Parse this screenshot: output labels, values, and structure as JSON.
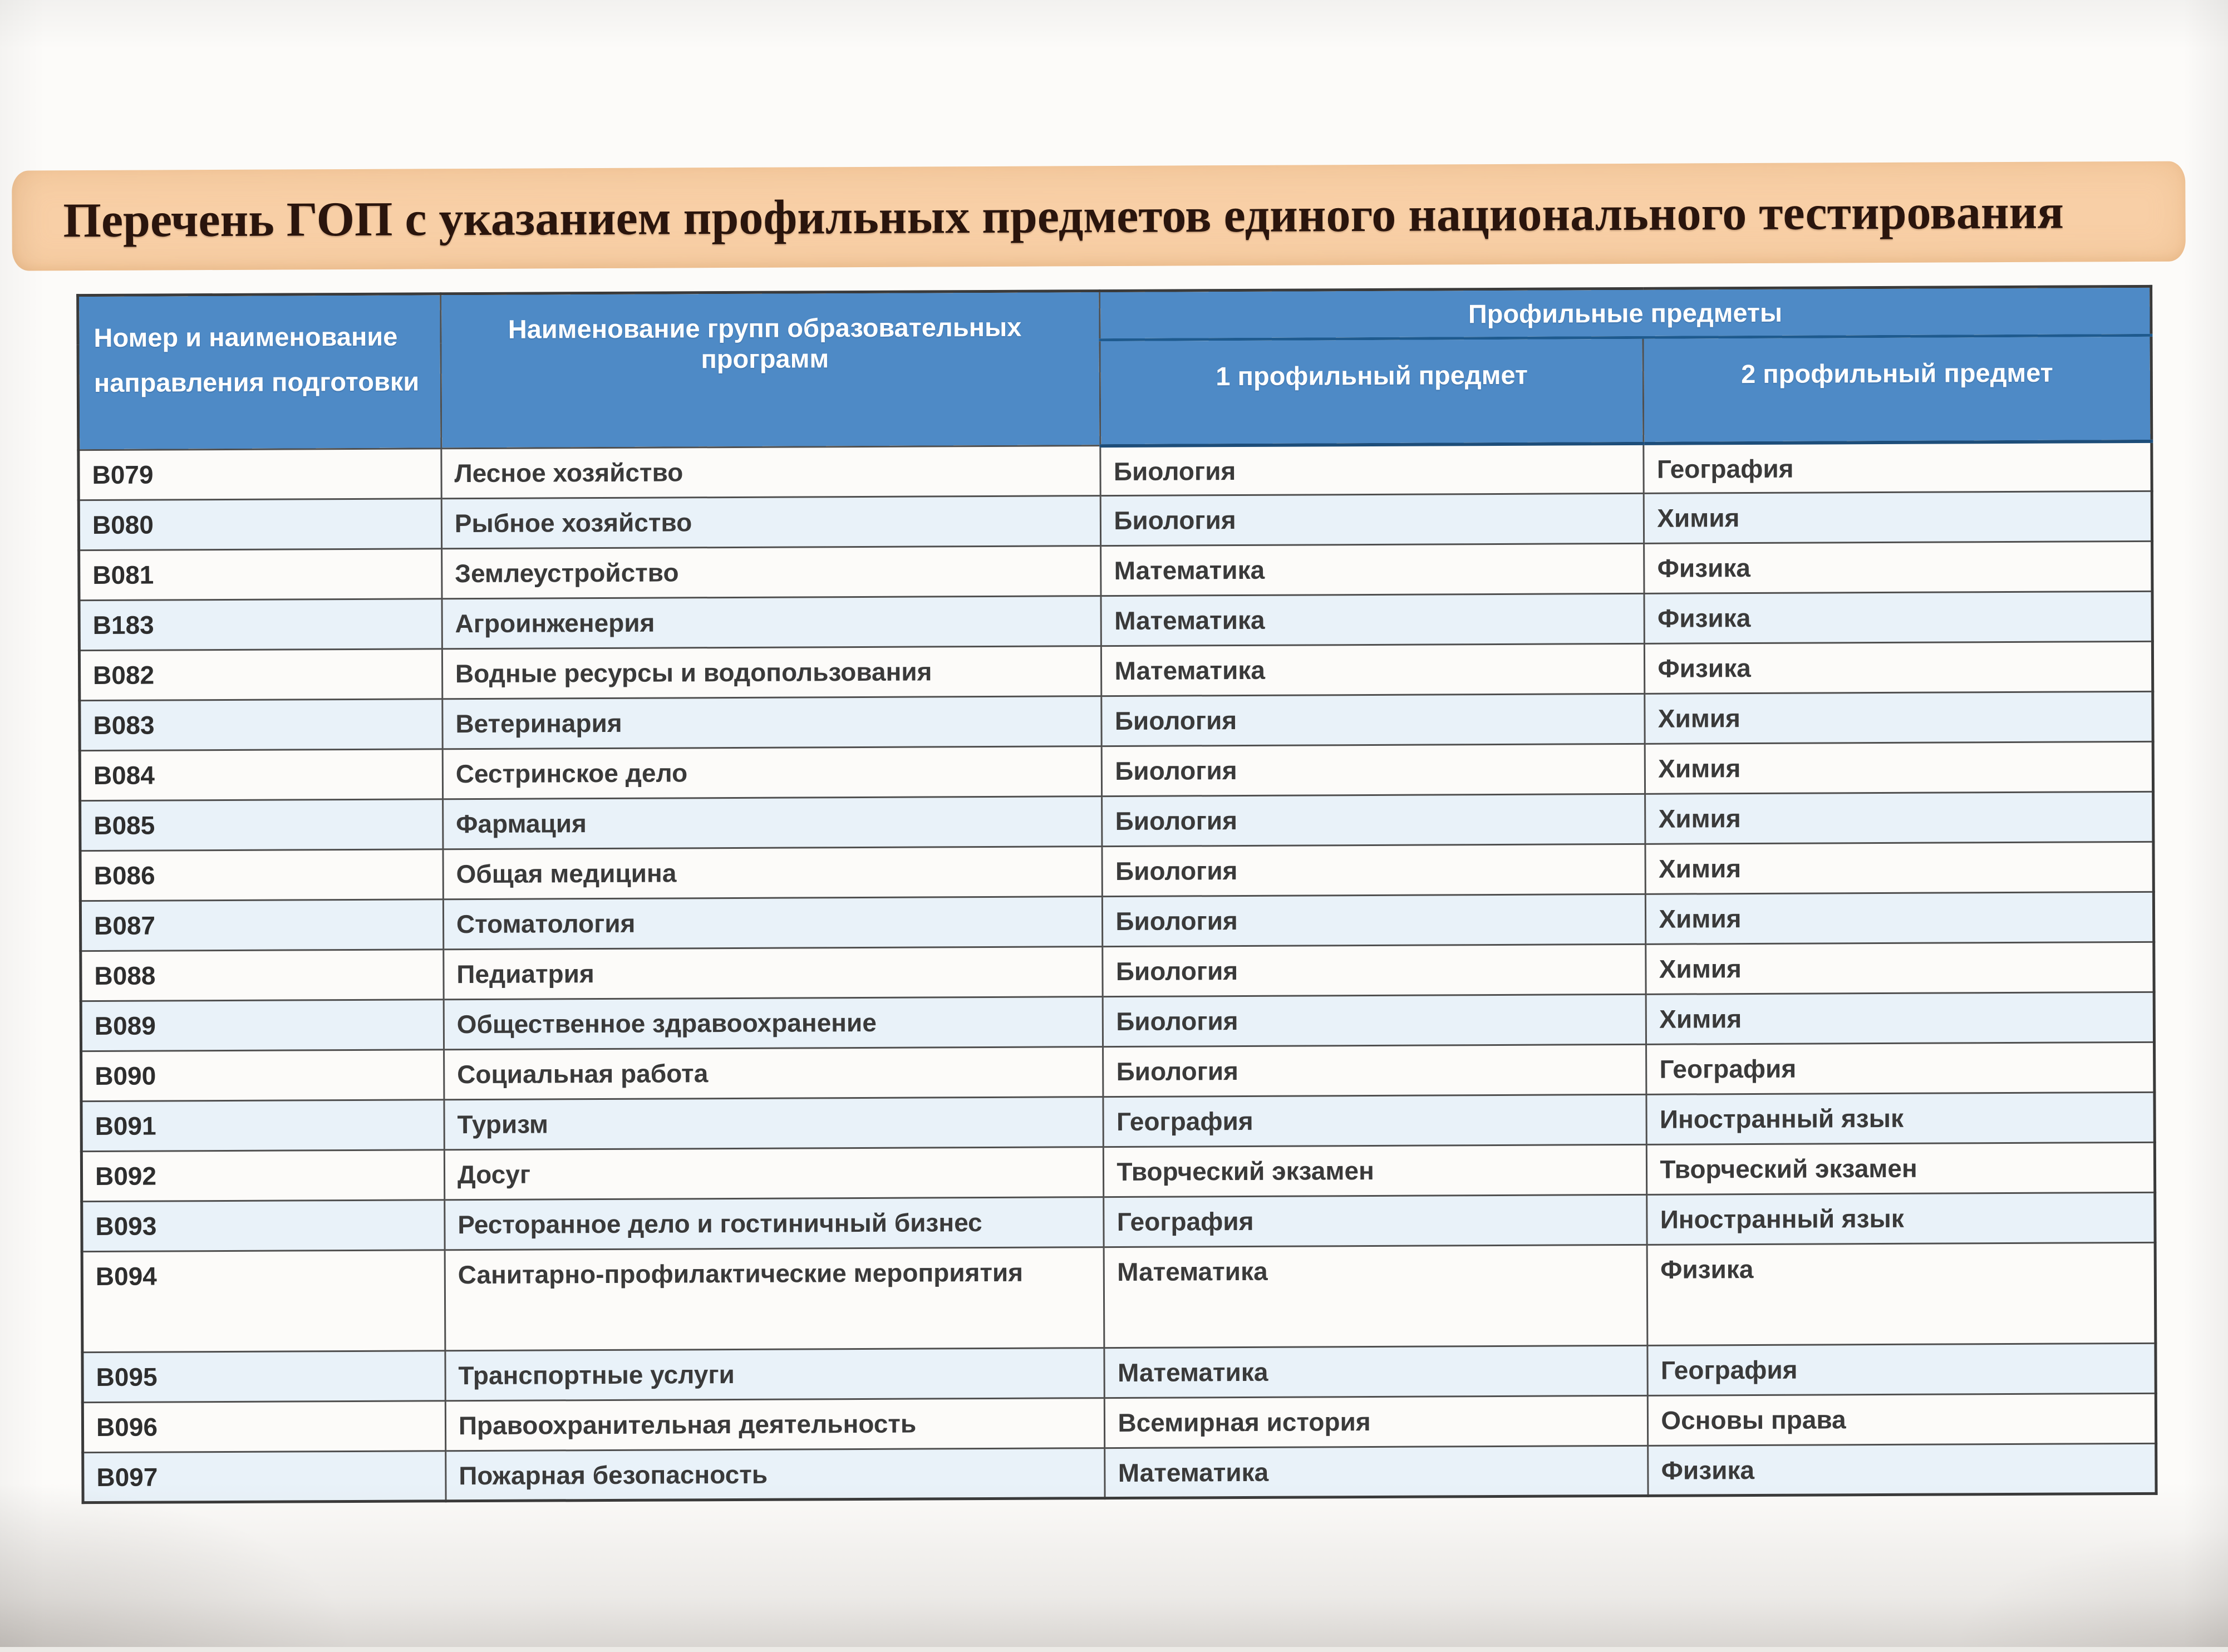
{
  "title": "Перечень ГОП с указанием профильных предметов единого национального тестирования",
  "table": {
    "headers": {
      "col1": "Номер и наименование направления подготовки",
      "col2": "Наименование групп образовательных программ",
      "group": "Профильные предметы",
      "sub1": "1 профильный предмет",
      "sub2": "2 профильный предмет"
    },
    "rows": [
      {
        "code": "B079",
        "program": "Лесное хозяйство",
        "subject1": "Биология",
        "subject2": "География"
      },
      {
        "code": "B080",
        "program": "Рыбное хозяйство",
        "subject1": "Биология",
        "subject2": "Химия"
      },
      {
        "code": "B081",
        "program": "Землеустройство",
        "subject1": "Математика",
        "subject2": "Физика"
      },
      {
        "code": "B183",
        "program": "Агроинженерия",
        "subject1": "Математика",
        "subject2": "Физика"
      },
      {
        "code": "B082",
        "program": "Водные ресурсы и водопользования",
        "subject1": "Математика",
        "subject2": "Физика"
      },
      {
        "code": "B083",
        "program": "Ветеринария",
        "subject1": "Биология",
        "subject2": "Химия"
      },
      {
        "code": "B084",
        "program": "Сестринское дело",
        "subject1": "Биология",
        "subject2": "Химия"
      },
      {
        "code": "B085",
        "program": "Фармация",
        "subject1": "Биология",
        "subject2": "Химия"
      },
      {
        "code": "B086",
        "program": "Общая медицина",
        "subject1": "Биология",
        "subject2": "Химия"
      },
      {
        "code": "B087",
        "program": "Стоматология",
        "subject1": "Биология",
        "subject2": "Химия"
      },
      {
        "code": "B088",
        "program": "Педиатрия",
        "subject1": "Биология",
        "subject2": "Химия"
      },
      {
        "code": "B089",
        "program": "Общественное здравоохранение",
        "subject1": "Биология",
        "subject2": "Химия"
      },
      {
        "code": "B090",
        "program": "Социальная работа",
        "subject1": "Биология",
        "subject2": "География"
      },
      {
        "code": "B091",
        "program": "Туризм",
        "subject1": "География",
        "subject2": "Иностранный язык"
      },
      {
        "code": "B092",
        "program": "Досуг",
        "subject1": "Творческий экзамен",
        "subject2": "Творческий экзамен"
      },
      {
        "code": "B093",
        "program": "Ресторанное дело и гостиничный бизнес",
        "subject1": "География",
        "subject2": "Иностранный язык"
      },
      {
        "code": "B094",
        "program": "Санитарно-профилактические мероприятия",
        "subject1": "Математика",
        "subject2": "Физика"
      },
      {
        "code": "B095",
        "program": "Транспортные услуги",
        "subject1": "Математика",
        "subject2": "География"
      },
      {
        "code": "B096",
        "program": "Правоохранительная деятельность",
        "subject1": "Всемирная история",
        "subject2": "Основы права"
      },
      {
        "code": "B097",
        "program": "Пожарная безопасность",
        "subject1": "Математика",
        "subject2": "Физика"
      }
    ]
  },
  "colors": {
    "banner_bg": "#f8cfa6",
    "banner_text": "#2a150d",
    "header_bg": "#4e8ac6",
    "header_text": "#ffffff",
    "header_divider": "#1e5a8e",
    "stripe": "#e9f2f9",
    "border": "#4f4f4f",
    "body_text": "#3a3a3a",
    "paper": "#fcfbf9"
  }
}
